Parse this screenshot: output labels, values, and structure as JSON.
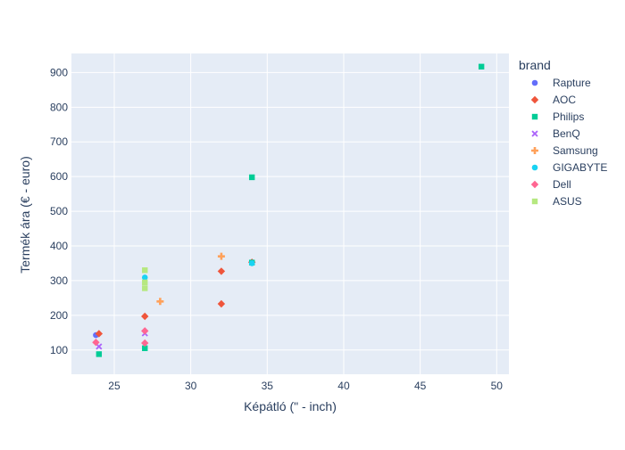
{
  "chart_data": {
    "type": "scatter",
    "title": "",
    "xlabel": "Képátló (\" - inch)",
    "ylabel": "Termék ára (€ - euro)",
    "xlim": [
      22.2,
      50.8
    ],
    "ylim": [
      30,
      955
    ],
    "x_ticks": [
      25,
      30,
      35,
      40,
      45,
      50
    ],
    "y_ticks": [
      100,
      200,
      300,
      400,
      500,
      600,
      700,
      800,
      900
    ],
    "grid": true,
    "legend_title": "brand",
    "legend_position": "right",
    "series": [
      {
        "name": "Rapture",
        "color": "#636efa",
        "symbol": "circle",
        "points": [
          [
            23.8,
            143
          ]
        ]
      },
      {
        "name": "AOC",
        "color": "#ef553b",
        "symbol": "diamond",
        "points": [
          [
            24,
            147
          ],
          [
            27,
            197
          ],
          [
            32,
            327
          ],
          [
            32,
            233
          ],
          [
            34,
            353
          ]
        ]
      },
      {
        "name": "Philips",
        "color": "#00cc96",
        "symbol": "square",
        "points": [
          [
            24,
            88
          ],
          [
            27,
            105
          ],
          [
            34,
            598
          ],
          [
            34,
            352
          ],
          [
            49,
            917
          ]
        ]
      },
      {
        "name": "BenQ",
        "color": "#ab63fa",
        "symbol": "x",
        "points": [
          [
            24,
            110
          ],
          [
            27,
            148
          ]
        ]
      },
      {
        "name": "Samsung",
        "color": "#ffa15a",
        "symbol": "cross",
        "points": [
          [
            28,
            240
          ],
          [
            32,
            370
          ]
        ]
      },
      {
        "name": "GIGABYTE",
        "color": "#19d3f3",
        "symbol": "circle",
        "points": [
          [
            27,
            309
          ],
          [
            34,
            350
          ]
        ]
      },
      {
        "name": "Dell",
        "color": "#ff6692",
        "symbol": "diamond",
        "points": [
          [
            23.8,
            122
          ],
          [
            27,
            155
          ],
          [
            27,
            120
          ]
        ]
      },
      {
        "name": "ASUS",
        "color": "#b6e880",
        "symbol": "square",
        "points": [
          [
            27,
            330
          ],
          [
            27,
            295
          ],
          [
            27,
            278
          ]
        ]
      }
    ]
  }
}
